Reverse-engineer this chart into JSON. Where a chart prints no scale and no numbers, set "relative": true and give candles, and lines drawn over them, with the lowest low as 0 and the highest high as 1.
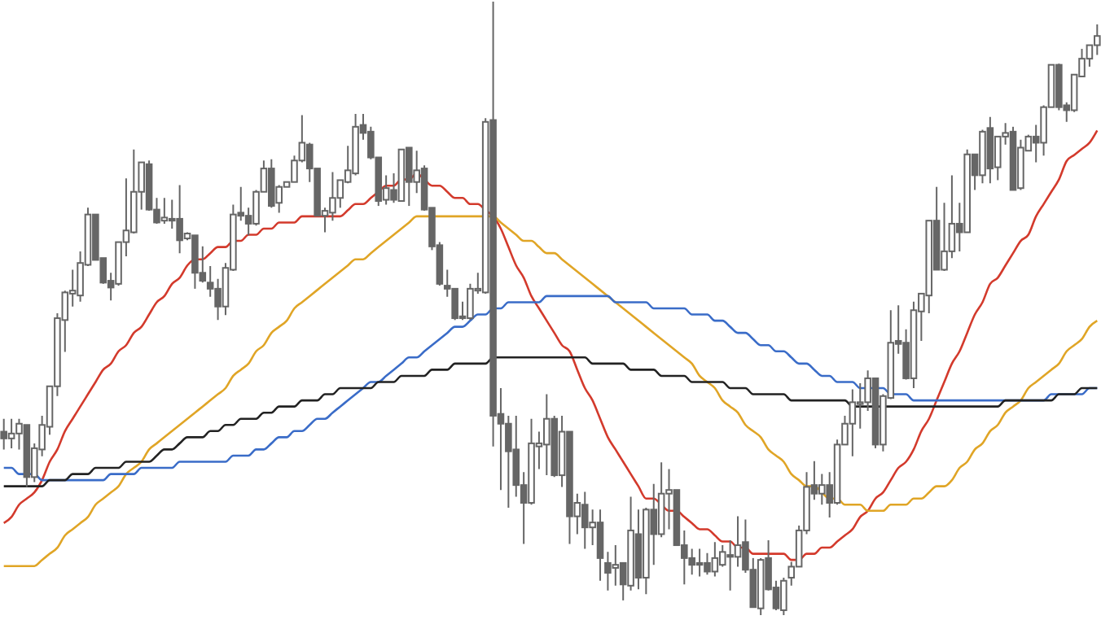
{
  "chart_data": {
    "type": "candlestick",
    "relative": true,
    "color": "#666666",
    "categories": [
      null,
      null,
      null,
      null,
      null,
      null,
      null,
      null,
      null,
      null,
      null,
      null,
      null,
      null,
      null,
      null,
      null,
      null,
      null,
      null,
      null,
      null,
      null,
      null,
      null,
      null,
      null,
      null,
      null,
      null,
      null,
      null,
      null,
      null,
      null,
      null,
      null,
      null,
      null,
      null,
      null,
      null,
      null,
      null,
      null,
      null,
      null,
      null,
      null,
      null,
      null,
      null,
      null,
      null,
      null,
      null,
      null,
      null,
      null,
      null,
      null,
      null,
      null,
      null,
      null,
      null,
      null,
      null,
      null,
      null,
      null,
      null,
      null,
      null,
      null,
      null,
      null,
      null,
      null,
      null,
      null,
      null,
      null,
      null,
      null,
      null,
      null,
      null,
      null,
      null,
      null,
      null,
      null,
      null,
      null,
      null,
      null,
      null,
      null,
      null,
      null,
      null,
      null,
      null,
      null,
      null,
      null,
      null,
      null,
      null,
      null,
      null,
      null,
      null,
      null,
      null,
      null,
      null,
      null,
      null,
      null,
      null,
      null,
      null,
      null,
      null,
      null,
      null,
      null,
      null,
      null,
      null,
      null,
      null,
      null,
      null,
      null,
      null,
      null,
      null,
      null,
      null,
      null,
      null
    ],
    "ohlc": [
      [
        0.299,
        0.32,
        0.27,
        0.288
      ],
      [
        0.288,
        0.32,
        0.272,
        0.296
      ],
      [
        0.296,
        0.32,
        0.27,
        0.312
      ],
      [
        0.31,
        0.31,
        0.209,
        0.225
      ],
      [
        0.225,
        0.28,
        0.217,
        0.272
      ],
      [
        0.27,
        0.325,
        0.259,
        0.31
      ],
      [
        0.307,
        0.373,
        0.294,
        0.373
      ],
      [
        0.373,
        0.492,
        0.357,
        0.484
      ],
      [
        0.481,
        0.529,
        0.429,
        0.526
      ],
      [
        0.524,
        0.563,
        0.503,
        0.529
      ],
      [
        0.521,
        0.593,
        0.511,
        0.574
      ],
      [
        0.571,
        0.664,
        0.569,
        0.653
      ],
      [
        0.653,
        0.653,
        0.579,
        0.579
      ],
      [
        0.582,
        0.582,
        0.54,
        0.542
      ],
      [
        0.545,
        0.558,
        0.513,
        0.534
      ],
      [
        0.54,
        0.608,
        0.537,
        0.608
      ],
      [
        0.608,
        0.712,
        0.585,
        0.627
      ],
      [
        0.624,
        0.759,
        0.622,
        0.69
      ],
      [
        0.69,
        0.738,
        0.661,
        0.738
      ],
      [
        0.735,
        0.741,
        0.659,
        0.661
      ],
      [
        0.661,
        0.68,
        0.638,
        0.64
      ],
      [
        0.643,
        0.68,
        0.638,
        0.648
      ],
      [
        0.646,
        0.677,
        0.63,
        0.643
      ],
      [
        0.646,
        0.701,
        0.59,
        0.611
      ],
      [
        0.614,
        0.624,
        0.611,
        0.622
      ],
      [
        0.619,
        0.619,
        0.532,
        0.558
      ],
      [
        0.558,
        0.601,
        0.542,
        0.545
      ],
      [
        0.542,
        0.569,
        0.519,
        0.532
      ],
      [
        0.532,
        0.548,
        0.481,
        0.503
      ],
      [
        0.503,
        0.574,
        0.489,
        0.566
      ],
      [
        0.563,
        0.669,
        0.561,
        0.653
      ],
      [
        0.656,
        0.698,
        0.643,
        0.651
      ],
      [
        0.651,
        0.664,
        0.619,
        0.638
      ],
      [
        0.638,
        0.693,
        0.635,
        0.69
      ],
      [
        0.69,
        0.741,
        0.69,
        0.728
      ],
      [
        0.728,
        0.743,
        0.664,
        0.667
      ],
      [
        0.672,
        0.701,
        0.656,
        0.698
      ],
      [
        0.698,
        0.706,
        0.698,
        0.706
      ],
      [
        0.706,
        0.749,
        0.706,
        0.741
      ],
      [
        0.741,
        0.815,
        0.738,
        0.77
      ],
      [
        0.767,
        0.77,
        0.706,
        0.728
      ],
      [
        0.728,
        0.728,
        0.651,
        0.651
      ],
      [
        0.651,
        0.664,
        0.624,
        0.659
      ],
      [
        0.656,
        0.722,
        0.643,
        0.68
      ],
      [
        0.68,
        0.709,
        0.664,
        0.709
      ],
      [
        0.706,
        0.765,
        0.704,
        0.725
      ],
      [
        0.72,
        0.817,
        0.717,
        0.796
      ],
      [
        0.799,
        0.817,
        0.775,
        0.786
      ],
      [
        0.788,
        0.796,
        0.743,
        0.746
      ],
      [
        0.746,
        0.746,
        0.667,
        0.675
      ],
      [
        0.677,
        0.717,
        0.669,
        0.696
      ],
      [
        0.693,
        0.72,
        0.672,
        0.677
      ],
      [
        0.675,
        0.759,
        0.675,
        0.759
      ],
      [
        0.762,
        0.762,
        0.667,
        0.706
      ],
      [
        0.706,
        0.757,
        0.688,
        0.725
      ],
      [
        0.728,
        0.733,
        0.659,
        0.661
      ],
      [
        0.664,
        0.664,
        0.595,
        0.601
      ],
      [
        0.603,
        0.608,
        0.537,
        0.54
      ],
      [
        0.537,
        0.563,
        0.519,
        0.532
      ],
      [
        0.532,
        0.532,
        0.481,
        0.484
      ],
      [
        0.487,
        0.511,
        0.481,
        0.484
      ],
      [
        0.484,
        0.54,
        0.481,
        0.532
      ],
      [
        0.529,
        0.558,
        0.524,
        0.532
      ],
      [
        0.526,
        0.81,
        0.524,
        0.804
      ],
      [
        0.807,
        1,
        0.275,
        0.325
      ],
      [
        0.328,
        0.37,
        0.204,
        0.312
      ],
      [
        0.312,
        0.325,
        0.175,
        0.267
      ],
      [
        0.27,
        0.325,
        0.193,
        0.212
      ],
      [
        0.212,
        0.233,
        0.116,
        0.183
      ],
      [
        0.183,
        0.32,
        0.18,
        0.28
      ],
      [
        0.275,
        0.299,
        0.238,
        0.28
      ],
      [
        0.278,
        0.36,
        0.228,
        0.32
      ],
      [
        0.32,
        0.325,
        0.225,
        0.228
      ],
      [
        0.228,
        0.325,
        0.209,
        0.299
      ],
      [
        0.299,
        0.299,
        0.116,
        0.161
      ],
      [
        0.161,
        0.198,
        0.132,
        0.183
      ],
      [
        0.18,
        0.201,
        0.108,
        0.143
      ],
      [
        0.143,
        0.172,
        0.114,
        0.151
      ],
      [
        0.151,
        0.172,
        0.056,
        0.093
      ],
      [
        0.085,
        0.103,
        0.04,
        0.069
      ],
      [
        0.077,
        0.114,
        0.048,
        0.082
      ],
      [
        0.085,
        0.085,
        0.024,
        0.05
      ],
      [
        0.048,
        0.193,
        0.04,
        0.138
      ],
      [
        0.132,
        0.172,
        0.042,
        0.061
      ],
      [
        0.061,
        0.175,
        0.034,
        0.172
      ],
      [
        0.172,
        0.214,
        0.082,
        0.132
      ],
      [
        0.132,
        0.249,
        0.127,
        0.198
      ],
      [
        0.198,
        0.238,
        0.14,
        0.204
      ],
      [
        0.204,
        0.204,
        0.114,
        0.114
      ],
      [
        0.114,
        0.138,
        0.05,
        0.093
      ],
      [
        0.093,
        0.108,
        0.066,
        0.082
      ],
      [
        0.085,
        0.108,
        0.063,
        0.082
      ],
      [
        0.085,
        0.101,
        0.066,
        0.071
      ],
      [
        0.071,
        0.119,
        0.063,
        0.093
      ],
      [
        0.082,
        0.114,
        0.079,
        0.103
      ],
      [
        0.098,
        0.122,
        0.04,
        0.095
      ],
      [
        0.095,
        0.161,
        0.079,
        0.114
      ],
      [
        0.119,
        0.156,
        0.069,
        0.074
      ],
      [
        0.074,
        0.093,
        0.013,
        0.013
      ],
      [
        0.011,
        0.093,
        0,
        0.09
      ],
      [
        0.093,
        0.122,
        0.04,
        0.042
      ],
      [
        0.045,
        0.056,
        0.008,
        0.011
      ],
      [
        0.008,
        0.061,
        0,
        0.056
      ],
      [
        0.061,
        0.087,
        0.048,
        0.079
      ],
      [
        0.079,
        0.146,
        0.079,
        0.138
      ],
      [
        0.138,
        0.233,
        0.132,
        0.209
      ],
      [
        0.212,
        0.251,
        0.188,
        0.198
      ],
      [
        0.198,
        0.23,
        0.18,
        0.212
      ],
      [
        0.212,
        0.233,
        0.159,
        0.183
      ],
      [
        0.183,
        0.286,
        0.18,
        0.278
      ],
      [
        0.278,
        0.325,
        0.278,
        0.312
      ],
      [
        0.312,
        0.368,
        0.259,
        0.347
      ],
      [
        0.344,
        0.378,
        0.304,
        0.347
      ],
      [
        0.347,
        0.399,
        0.333,
        0.386
      ],
      [
        0.386,
        0.386,
        0.272,
        0.278
      ],
      [
        0.278,
        0.36,
        0.267,
        0.357
      ],
      [
        0.354,
        0.497,
        0.352,
        0.444
      ],
      [
        0.447,
        0.505,
        0.426,
        0.442
      ],
      [
        0.444,
        0.466,
        0.384,
        0.386
      ],
      [
        0.386,
        0.511,
        0.37,
        0.497
      ],
      [
        0.495,
        0.524,
        0.447,
        0.524
      ],
      [
        0.521,
        0.643,
        0.492,
        0.643
      ],
      [
        0.643,
        0.698,
        0.563,
        0.563
      ],
      [
        0.563,
        0.672,
        0.561,
        0.593
      ],
      [
        0.593,
        0.717,
        0.582,
        0.638
      ],
      [
        0.638,
        0.672,
        0.593,
        0.624
      ],
      [
        0.624,
        0.759,
        0.624,
        0.751
      ],
      [
        0.751,
        0.751,
        0.693,
        0.717
      ],
      [
        0.717,
        0.791,
        0.704,
        0.788
      ],
      [
        0.794,
        0.812,
        0.704,
        0.728
      ],
      [
        0.73,
        0.78,
        0.709,
        0.78
      ],
      [
        0.78,
        0.802,
        0.767,
        0.786
      ],
      [
        0.788,
        0.796,
        0.693,
        0.693
      ],
      [
        0.696,
        0.775,
        0.693,
        0.762
      ],
      [
        0.757,
        0.783,
        0.757,
        0.78
      ],
      [
        0.78,
        0.799,
        0.738,
        0.77
      ],
      [
        0.77,
        0.831,
        0.749,
        0.828
      ],
      [
        0.828,
        0.897,
        0.828,
        0.897
      ],
      [
        0.897,
        0.899,
        0.823,
        0.828
      ],
      [
        0.831,
        0.836,
        0.804,
        0.823
      ],
      [
        0.823,
        0.881,
        0.82,
        0.881
      ],
      [
        0.878,
        0.923,
        0.878,
        0.907
      ],
      [
        0.907,
        0.929,
        0.894,
        0.929
      ],
      [
        0.929,
        0.963,
        0.913,
        0.944
      ]
    ],
    "series": [
      {
        "type": "line",
        "color": "#d33a2c",
        "values": [
          0.15,
          0.16,
          0.18,
          0.19,
          0.2,
          0.22,
          0.25,
          0.27,
          0.3,
          0.32,
          0.34,
          0.36,
          0.38,
          0.4,
          0.41,
          0.43,
          0.44,
          0.46,
          0.47,
          0.49,
          0.51,
          0.52,
          0.54,
          0.55,
          0.57,
          0.58,
          0.58,
          0.59,
          0.6,
          0.6,
          0.61,
          0.61,
          0.62,
          0.62,
          0.63,
          0.63,
          0.64,
          0.64,
          0.64,
          0.65,
          0.65,
          0.65,
          0.65,
          0.65,
          0.65,
          0.66,
          0.67,
          0.67,
          0.68,
          0.69,
          0.7,
          0.7,
          0.71,
          0.71,
          0.72,
          0.71,
          0.7,
          0.7,
          0.69,
          0.68,
          0.68,
          0.67,
          0.67,
          0.66,
          0.65,
          0.63,
          0.6,
          0.57,
          0.55,
          0.52,
          0.5,
          0.48,
          0.46,
          0.44,
          0.43,
          0.4,
          0.37,
          0.35,
          0.32,
          0.29,
          0.27,
          0.25,
          0.23,
          0.21,
          0.19,
          0.19,
          0.18,
          0.17,
          0.17,
          0.16,
          0.15,
          0.14,
          0.14,
          0.13,
          0.12,
          0.12,
          0.11,
          0.11,
          0.1,
          0.1,
          0.1,
          0.1,
          0.1,
          0.09,
          0.09,
          0.1,
          0.1,
          0.11,
          0.11,
          0.12,
          0.13,
          0.14,
          0.16,
          0.17,
          0.19,
          0.2,
          0.22,
          0.24,
          0.25,
          0.27,
          0.3,
          0.32,
          0.35,
          0.38,
          0.41,
          0.43,
          0.46,
          0.49,
          0.51,
          0.54,
          0.55,
          0.57,
          0.59,
          0.61,
          0.62,
          0.65,
          0.67,
          0.69,
          0.71,
          0.74,
          0.75,
          0.76,
          0.77,
          0.79
        ]
      },
      {
        "type": "line",
        "color": "#e0a526",
        "values": [
          0.08,
          0.08,
          0.08,
          0.08,
          0.08,
          0.09,
          0.1,
          0.11,
          0.13,
          0.14,
          0.15,
          0.16,
          0.18,
          0.19,
          0.2,
          0.21,
          0.23,
          0.24,
          0.25,
          0.27,
          0.28,
          0.29,
          0.3,
          0.31,
          0.32,
          0.33,
          0.34,
          0.35,
          0.36,
          0.37,
          0.39,
          0.4,
          0.41,
          0.43,
          0.44,
          0.46,
          0.47,
          0.48,
          0.5,
          0.51,
          0.52,
          0.53,
          0.54,
          0.55,
          0.56,
          0.57,
          0.58,
          0.58,
          0.59,
          0.6,
          0.61,
          0.62,
          0.63,
          0.64,
          0.65,
          0.65,
          0.65,
          0.65,
          0.65,
          0.65,
          0.65,
          0.65,
          0.65,
          0.65,
          0.65,
          0.64,
          0.63,
          0.62,
          0.61,
          0.61,
          0.6,
          0.59,
          0.59,
          0.58,
          0.57,
          0.56,
          0.55,
          0.54,
          0.53,
          0.52,
          0.51,
          0.5,
          0.49,
          0.48,
          0.47,
          0.46,
          0.45,
          0.44,
          0.43,
          0.42,
          0.41,
          0.39,
          0.38,
          0.37,
          0.35,
          0.34,
          0.33,
          0.31,
          0.3,
          0.29,
          0.27,
          0.26,
          0.25,
          0.23,
          0.22,
          0.21,
          0.21,
          0.2,
          0.19,
          0.19,
          0.18,
          0.18,
          0.18,
          0.17,
          0.17,
          0.17,
          0.18,
          0.18,
          0.18,
          0.19,
          0.19,
          0.2,
          0.21,
          0.21,
          0.22,
          0.24,
          0.25,
          0.27,
          0.28,
          0.3,
          0.31,
          0.33,
          0.34,
          0.35,
          0.37,
          0.38,
          0.39,
          0.4,
          0.41,
          0.43,
          0.44,
          0.45,
          0.47,
          0.48
        ]
      },
      {
        "type": "line",
        "color": "#3a6cc8",
        "values": [
          0.24,
          0.24,
          0.23,
          0.23,
          0.23,
          0.22,
          0.22,
          0.22,
          0.22,
          0.22,
          0.22,
          0.22,
          0.22,
          0.22,
          0.23,
          0.23,
          0.23,
          0.23,
          0.24,
          0.24,
          0.24,
          0.24,
          0.24,
          0.25,
          0.25,
          0.25,
          0.25,
          0.25,
          0.25,
          0.25,
          0.26,
          0.26,
          0.26,
          0.27,
          0.27,
          0.28,
          0.29,
          0.29,
          0.3,
          0.3,
          0.31,
          0.32,
          0.32,
          0.33,
          0.34,
          0.35,
          0.36,
          0.37,
          0.38,
          0.38,
          0.39,
          0.4,
          0.41,
          0.42,
          0.42,
          0.43,
          0.44,
          0.45,
          0.46,
          0.47,
          0.47,
          0.48,
          0.49,
          0.49,
          0.5,
          0.5,
          0.51,
          0.51,
          0.51,
          0.51,
          0.51,
          0.52,
          0.52,
          0.52,
          0.52,
          0.52,
          0.52,
          0.52,
          0.52,
          0.52,
          0.51,
          0.51,
          0.51,
          0.51,
          0.51,
          0.5,
          0.5,
          0.5,
          0.5,
          0.5,
          0.49,
          0.49,
          0.49,
          0.48,
          0.48,
          0.47,
          0.46,
          0.46,
          0.45,
          0.44,
          0.44,
          0.43,
          0.43,
          0.42,
          0.41,
          0.41,
          0.4,
          0.39,
          0.39,
          0.38,
          0.38,
          0.38,
          0.37,
          0.37,
          0.37,
          0.37,
          0.36,
          0.36,
          0.36,
          0.35,
          0.35,
          0.35,
          0.35,
          0.35,
          0.35,
          0.35,
          0.35,
          0.35,
          0.35,
          0.35,
          0.35,
          0.35,
          0.35,
          0.35,
          0.35,
          0.35,
          0.35,
          0.36,
          0.36,
          0.36,
          0.36,
          0.36,
          0.37,
          0.37
        ]
      },
      {
        "type": "line",
        "color": "#222222",
        "values": [
          0.21,
          0.21,
          0.21,
          0.21,
          0.21,
          0.21,
          0.22,
          0.22,
          0.22,
          0.23,
          0.23,
          0.23,
          0.24,
          0.24,
          0.24,
          0.24,
          0.25,
          0.25,
          0.25,
          0.25,
          0.26,
          0.27,
          0.27,
          0.28,
          0.29,
          0.29,
          0.29,
          0.3,
          0.3,
          0.31,
          0.31,
          0.32,
          0.32,
          0.32,
          0.33,
          0.33,
          0.34,
          0.34,
          0.34,
          0.35,
          0.35,
          0.35,
          0.36,
          0.36,
          0.37,
          0.37,
          0.37,
          0.37,
          0.37,
          0.38,
          0.38,
          0.38,
          0.39,
          0.39,
          0.39,
          0.39,
          0.4,
          0.4,
          0.4,
          0.41,
          0.41,
          0.41,
          0.41,
          0.41,
          0.42,
          0.42,
          0.42,
          0.42,
          0.42,
          0.42,
          0.42,
          0.42,
          0.42,
          0.42,
          0.42,
          0.42,
          0.42,
          0.41,
          0.41,
          0.41,
          0.41,
          0.41,
          0.4,
          0.4,
          0.4,
          0.4,
          0.39,
          0.39,
          0.39,
          0.39,
          0.38,
          0.38,
          0.38,
          0.38,
          0.38,
          0.37,
          0.37,
          0.37,
          0.36,
          0.36,
          0.36,
          0.36,
          0.36,
          0.35,
          0.35,
          0.35,
          0.35,
          0.35,
          0.35,
          0.35,
          0.35,
          0.34,
          0.34,
          0.34,
          0.34,
          0.34,
          0.34,
          0.34,
          0.34,
          0.34,
          0.34,
          0.34,
          0.34,
          0.34,
          0.34,
          0.34,
          0.34,
          0.34,
          0.34,
          0.34,
          0.34,
          0.35,
          0.35,
          0.35,
          0.35,
          0.35,
          0.35,
          0.35,
          0.36,
          0.36,
          0.36,
          0.37,
          0.37,
          0.37
        ]
      }
    ]
  }
}
